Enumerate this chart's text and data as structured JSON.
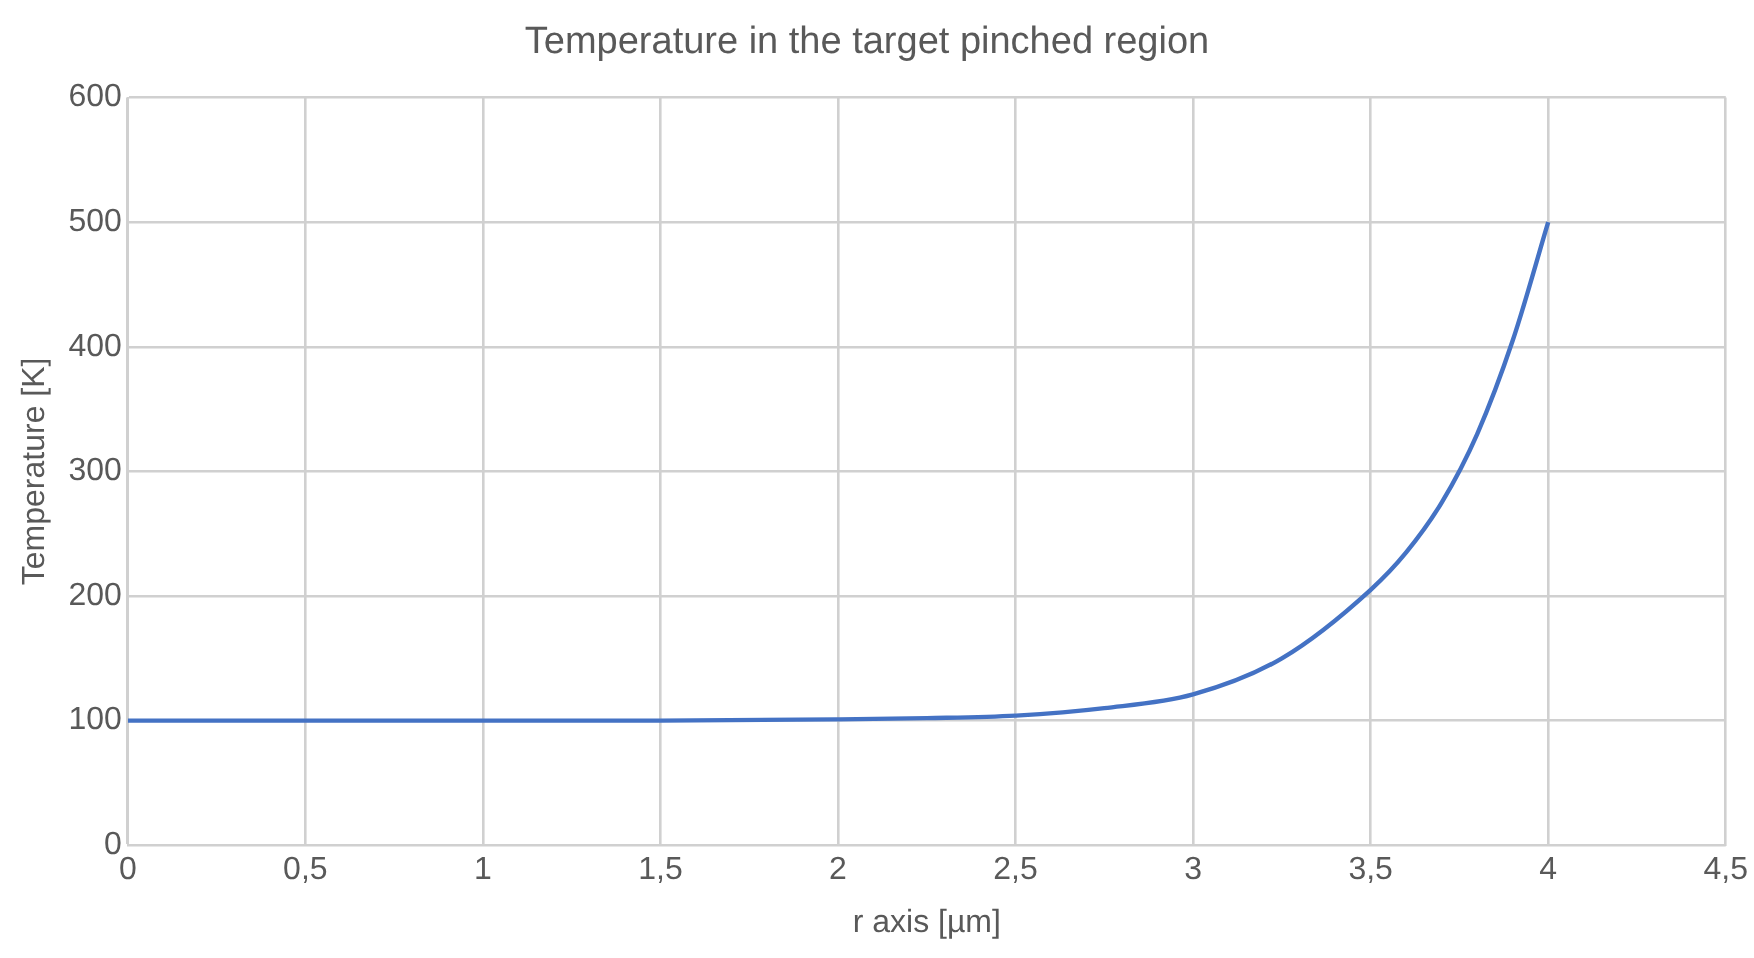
{
  "chart_data": {
    "type": "line",
    "title": "Temperature in the target pinched region",
    "xlabel": "r axis [µm]",
    "ylabel": "Temperature [K]",
    "x": [
      0,
      0.5,
      1,
      1.5,
      2,
      2.25,
      2.5,
      2.75,
      3,
      3.25,
      3.5,
      3.6,
      3.7,
      3.8,
      3.9,
      4
    ],
    "series": [
      {
        "color": "#4472c4",
        "values": [
          100,
          100,
          100,
          100,
          101,
          102,
          104,
          110,
          121,
          150,
          205,
          235,
          275,
          330,
          405,
          500
        ]
      }
    ],
    "xlim": [
      0,
      4.5
    ],
    "xticks": [
      0,
      {
        "value": 0.5,
        "label": "0,5"
      },
      1,
      {
        "value": 1.5,
        "label": "1,5"
      },
      2,
      {
        "value": 2.5,
        "label": "2,5"
      },
      3,
      {
        "value": 3.5,
        "label": "3,5"
      },
      4,
      {
        "value": 4.5,
        "label": "4,5"
      }
    ],
    "ylim": [
      0,
      600
    ],
    "yticks": [
      0,
      100,
      200,
      300,
      400,
      500,
      600
    ],
    "grid": true,
    "legend": false,
    "marker": "none",
    "line_style": "solid"
  }
}
